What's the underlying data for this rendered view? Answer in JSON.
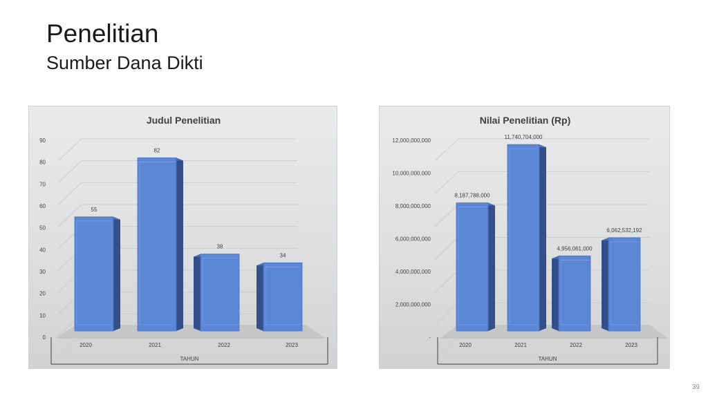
{
  "slide": {
    "title": "Penelitian",
    "subtitle": "Sumber Dana Dikti",
    "page_number": "39"
  },
  "chart_data": [
    {
      "type": "bar",
      "title": "Judul Penelitian",
      "categories": [
        "2020",
        "2021",
        "2022",
        "2023"
      ],
      "values": [
        55,
        82,
        38,
        34
      ],
      "data_labels": [
        "55",
        "82",
        "38",
        "34"
      ],
      "xlabel": "TAHUN",
      "ylabel": "",
      "ylim": [
        0,
        90
      ],
      "y_ticks": [
        0,
        10,
        20,
        30,
        40,
        50,
        60,
        70,
        80,
        90
      ],
      "y_tick_labels": [
        "0",
        "10",
        "20",
        "30",
        "40",
        "50",
        "60",
        "70",
        "80",
        "90"
      ],
      "grid": true,
      "style": "3d-column",
      "bar_color": "#5b87d6"
    },
    {
      "type": "bar",
      "title": "Nilai Penelitian (Rp)",
      "categories": [
        "2020",
        "2021",
        "2022",
        "2023"
      ],
      "values": [
        8187788000,
        11740704000,
        4956061000,
        6062532192
      ],
      "data_labels": [
        "8,187,788,000",
        "11,740,704,000",
        "4,956,061,000",
        "6,062,532,192"
      ],
      "xlabel": "TAHUN",
      "ylabel": "",
      "ylim": [
        0,
        12000000000
      ],
      "y_ticks": [
        0,
        2000000000,
        4000000000,
        6000000000,
        8000000000,
        10000000000,
        12000000000
      ],
      "y_tick_labels": [
        "-",
        "2,000,000,000",
        "4,000,000,000",
        "6,000,000,000",
        "8,000,000,000",
        "10,000,000,000",
        "12,000,000,000"
      ],
      "grid": true,
      "style": "3d-column",
      "bar_color": "#5b87d6"
    }
  ]
}
